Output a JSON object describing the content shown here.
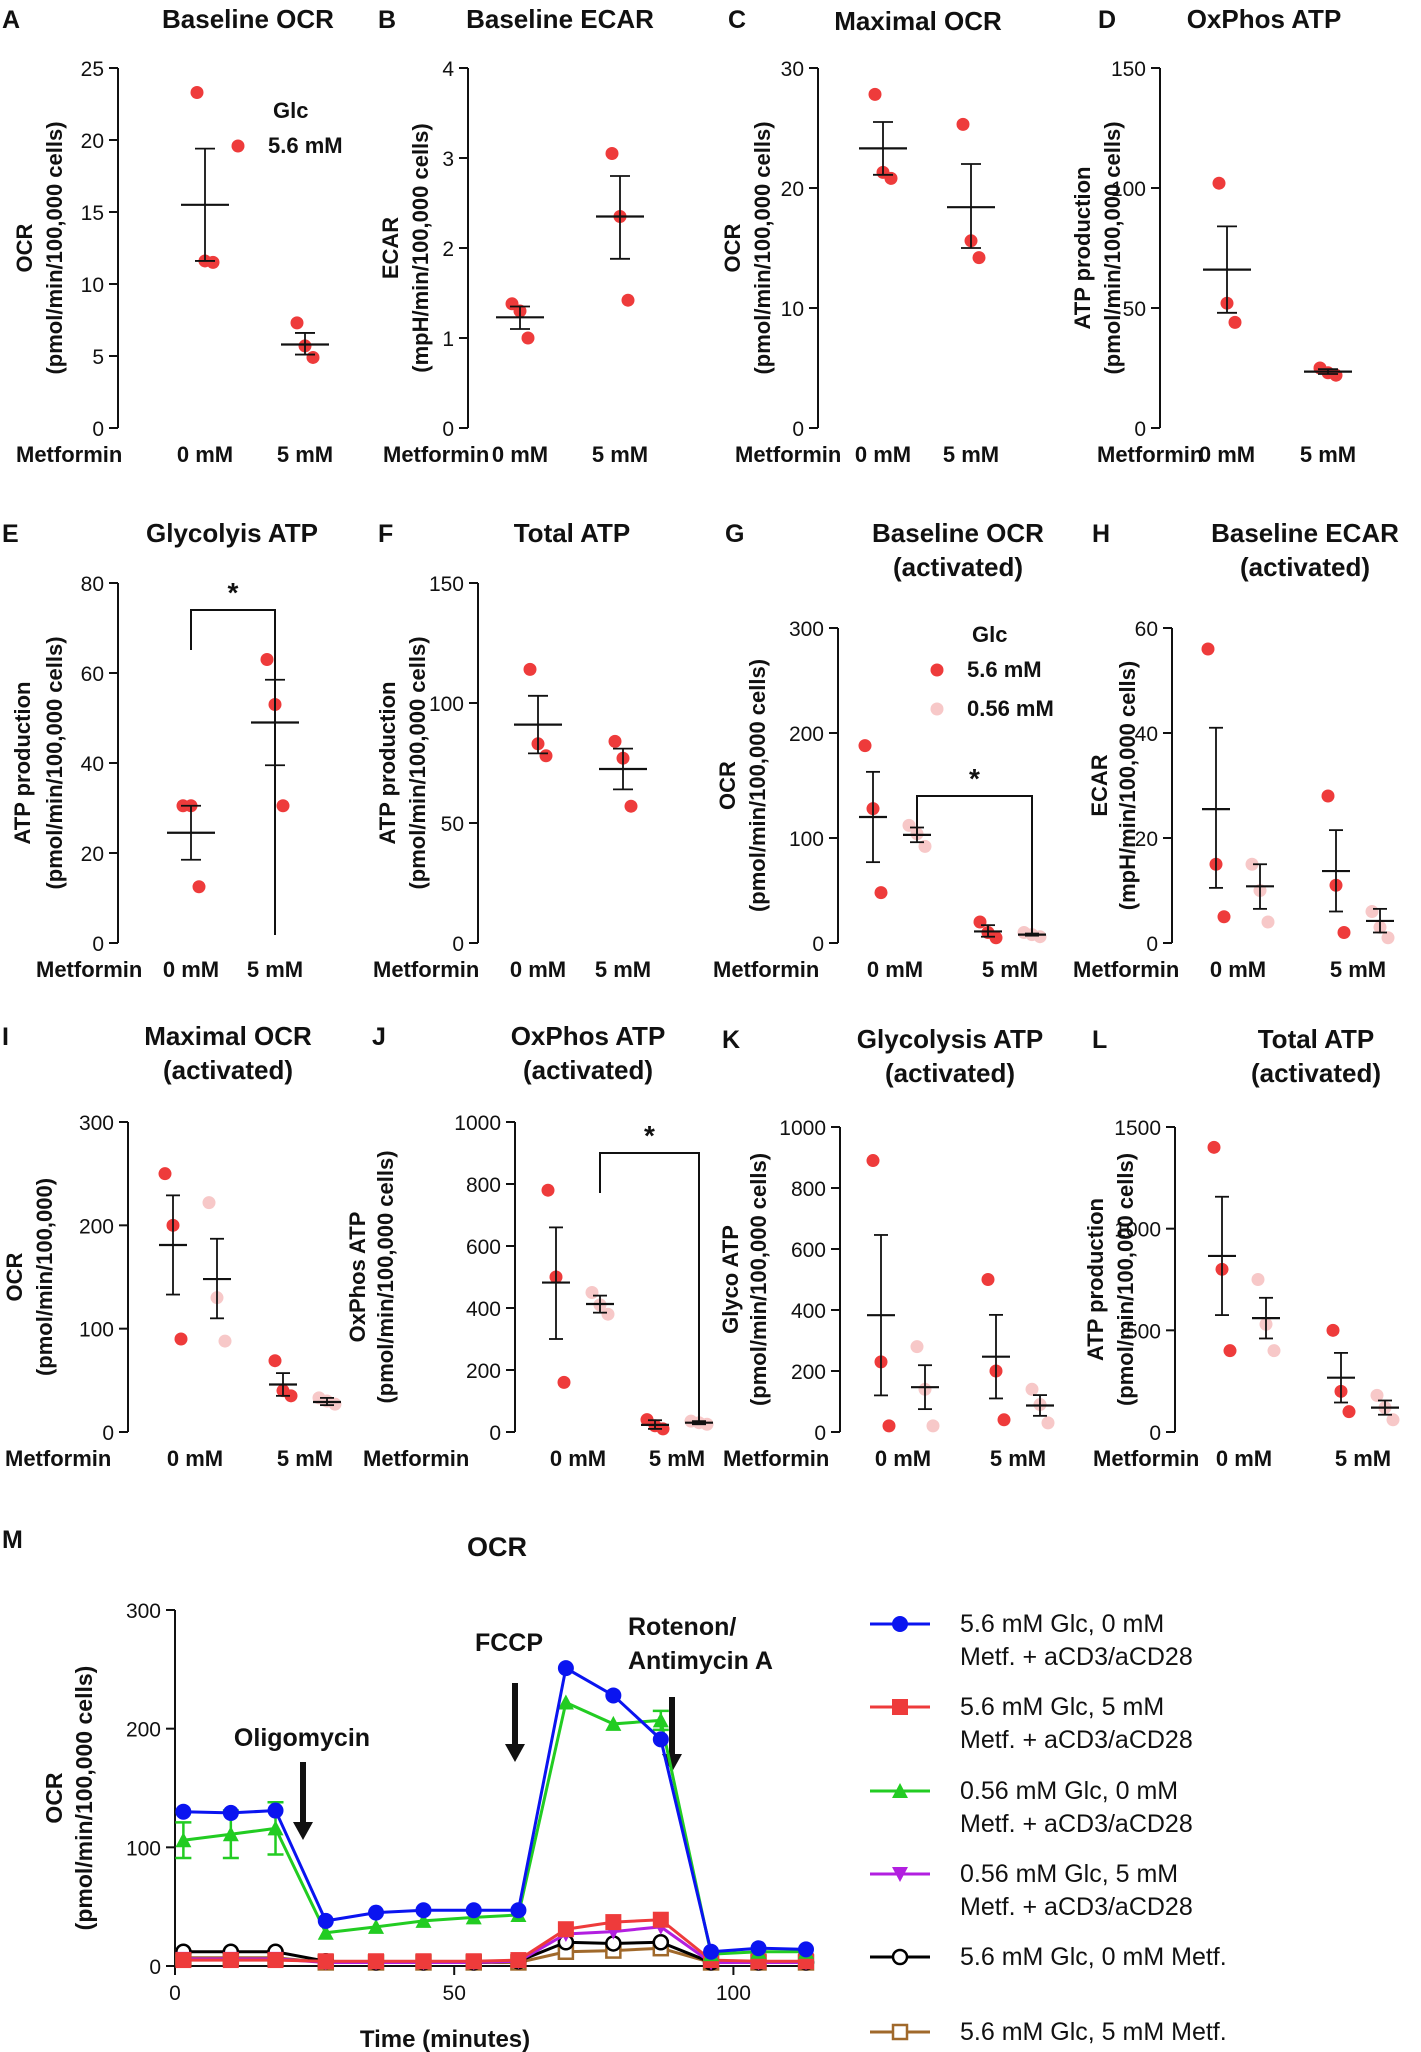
{
  "colors": {
    "red": "#ee3b3b",
    "pink": "#f7c8c8",
    "axis": "#111111",
    "blue": "#0a14f0",
    "green": "#22cc22",
    "purple": "#b21fe0",
    "black": "#000000",
    "brown": "#a0692b"
  },
  "chart_data": [
    {
      "panel": "A",
      "type": "scatter",
      "title": "Baseline OCR",
      "ylabel": [
        "OCR",
        "(pmol/min/100,000 cells)"
      ],
      "xlabel": "Metformin",
      "categories": [
        "0 mM",
        "5 mM"
      ],
      "ylim": [
        0,
        25
      ],
      "yticks": [
        0,
        5,
        10,
        15,
        20,
        25
      ],
      "legend": {
        "title": "Glc",
        "items": [
          {
            "label": "5.6 mM",
            "color": "red"
          }
        ]
      },
      "groups": [
        {
          "category": "0 mM",
          "color": "red",
          "points": [
            23.3,
            11.6,
            11.5
          ],
          "mean": 15.5,
          "sem": [
            11.6,
            19.4
          ]
        },
        {
          "category": "5 mM",
          "color": "red",
          "points": [
            7.3,
            5.7,
            4.9
          ],
          "mean": 5.8,
          "sem": [
            5.1,
            6.6
          ]
        }
      ]
    },
    {
      "panel": "B",
      "type": "scatter",
      "title": "Baseline ECAR",
      "ylabel": [
        "ECAR",
        "(mpH/min/100,000 cells)"
      ],
      "xlabel": "Metformin",
      "categories": [
        "0 mM",
        "5 mM"
      ],
      "ylim": [
        0,
        4
      ],
      "yticks": [
        0,
        1,
        2,
        3,
        4
      ],
      "groups": [
        {
          "category": "0 mM",
          "color": "red",
          "points": [
            1.38,
            1.3,
            1.0
          ],
          "mean": 1.23,
          "sem": [
            1.1,
            1.35
          ]
        },
        {
          "category": "5 mM",
          "color": "red",
          "points": [
            3.05,
            2.35,
            1.42
          ],
          "mean": 2.35,
          "sem": [
            1.88,
            2.8
          ]
        }
      ]
    },
    {
      "panel": "C",
      "type": "scatter",
      "title": "Maximal OCR",
      "ylabel": [
        "OCR",
        "(pmol/min/100,000 cells)"
      ],
      "xlabel": "Metformin",
      "categories": [
        "0 mM",
        "5 mM"
      ],
      "ylim": [
        0,
        30
      ],
      "yticks": [
        0,
        10,
        20,
        30
      ],
      "groups": [
        {
          "category": "0 mM",
          "color": "red",
          "points": [
            27.8,
            21.3,
            20.8
          ],
          "mean": 23.3,
          "sem": [
            21.1,
            25.5
          ]
        },
        {
          "category": "5 mM",
          "color": "red",
          "points": [
            25.3,
            15.6,
            14.2
          ],
          "mean": 18.4,
          "sem": [
            15.0,
            22.0
          ]
        }
      ]
    },
    {
      "panel": "D",
      "type": "scatter",
      "title": "OxPhos ATP",
      "ylabel": [
        "ATP production",
        "(pmol/min/100,000 cells)"
      ],
      "xlabel": "Metformin",
      "categories": [
        "0 mM",
        "5 mM"
      ],
      "ylim": [
        0,
        150
      ],
      "yticks": [
        0,
        50,
        100,
        150
      ],
      "groups": [
        {
          "category": "0 mM",
          "color": "red",
          "points": [
            102,
            52,
            44
          ],
          "mean": 66,
          "sem": [
            48,
            84
          ]
        },
        {
          "category": "5 mM",
          "color": "red",
          "points": [
            25,
            23,
            22
          ],
          "mean": 23.5,
          "sem": [
            22.5,
            24.5
          ]
        }
      ]
    },
    {
      "panel": "E",
      "type": "scatter",
      "title": "Glycolyis ATP",
      "ylabel": [
        "ATP production",
        "(pmol/min/100,000 cells)"
      ],
      "xlabel": "Metformin",
      "categories": [
        "0 mM",
        "5 mM"
      ],
      "ylim": [
        0,
        80
      ],
      "yticks": [
        0,
        20,
        40,
        60,
        80
      ],
      "significance": [
        {
          "from": 0,
          "to": 1,
          "label": "*",
          "level": 74
        }
      ],
      "groups": [
        {
          "category": "0 mM",
          "color": "red",
          "points": [
            30.5,
            30.5,
            12.5
          ],
          "mean": 24.5,
          "sem": [
            18.5,
            30.5
          ]
        },
        {
          "category": "5 mM",
          "color": "red",
          "points": [
            63,
            53,
            30.5
          ],
          "mean": 49,
          "sem": [
            39.5,
            58.5
          ]
        }
      ]
    },
    {
      "panel": "F",
      "type": "scatter",
      "title": "Total ATP",
      "ylabel": [
        "ATP production",
        "(pmol/min/100,000 cells)"
      ],
      "xlabel": "Metformin",
      "categories": [
        "0 mM",
        "5 mM"
      ],
      "ylim": [
        0,
        150
      ],
      "yticks": [
        0,
        50,
        100,
        150
      ],
      "groups": [
        {
          "category": "0 mM",
          "color": "red",
          "points": [
            114,
            83,
            78
          ],
          "mean": 91,
          "sem": [
            79,
            103
          ]
        },
        {
          "category": "5 mM",
          "color": "red",
          "points": [
            84,
            77,
            57
          ],
          "mean": 72.5,
          "sem": [
            64,
            81
          ]
        }
      ]
    },
    {
      "panel": "G",
      "type": "scatter",
      "title": "Baseline OCR",
      "subtitle": "(activated)",
      "ylabel": [
        "OCR",
        "(pmol/min/100,000 cells)"
      ],
      "xlabel": "Metformin",
      "categories": [
        "0 mM",
        "5 mM"
      ],
      "ylim": [
        0,
        300
      ],
      "yticks": [
        0,
        100,
        200,
        300
      ],
      "legend": {
        "title": "Glc",
        "items": [
          {
            "label": "5.6 mM",
            "color": "red"
          },
          {
            "label": "0.56 mM",
            "color": "pink"
          }
        ]
      },
      "significance": [
        {
          "from": 1,
          "to": 3,
          "label": "*",
          "level": 140
        }
      ],
      "groups": [
        {
          "category": "0 mM",
          "color": "red",
          "points": [
            188,
            128,
            48
          ],
          "mean": 120,
          "sem": [
            77,
            163
          ]
        },
        {
          "category": "0 mM",
          "color": "pink",
          "points": [
            112,
            104,
            92
          ],
          "mean": 103,
          "sem": [
            96,
            110
          ]
        },
        {
          "category": "5 mM",
          "color": "red",
          "points": [
            20,
            10,
            5
          ],
          "mean": 11,
          "sem": [
            6,
            17
          ]
        },
        {
          "category": "5 mM",
          "color": "pink",
          "points": [
            10,
            8,
            6
          ],
          "mean": 8,
          "sem": [
            7,
            9
          ]
        }
      ]
    },
    {
      "panel": "H",
      "type": "scatter",
      "title": "Baseline ECAR",
      "subtitle": "(activated)",
      "ylabel": [
        "ECAR",
        "(mpH/min/100,000 cells)"
      ],
      "xlabel": "Metformin",
      "categories": [
        "0 mM",
        "5 mM"
      ],
      "ylim": [
        0,
        60
      ],
      "yticks": [
        0,
        20,
        40,
        60
      ],
      "groups": [
        {
          "category": "0 mM",
          "color": "red",
          "points": [
            56,
            15,
            5
          ],
          "mean": 25.5,
          "sem": [
            10.5,
            41
          ]
        },
        {
          "category": "0 mM",
          "color": "pink",
          "points": [
            15,
            10,
            4
          ],
          "mean": 10.8,
          "sem": [
            6.5,
            15
          ]
        },
        {
          "category": "5 mM",
          "color": "red",
          "points": [
            28,
            11,
            2
          ],
          "mean": 13.7,
          "sem": [
            6,
            21.5
          ]
        },
        {
          "category": "5 mM",
          "color": "pink",
          "points": [
            6,
            3,
            1
          ],
          "mean": 4.2,
          "sem": [
            2,
            6.5
          ]
        }
      ]
    },
    {
      "panel": "I",
      "type": "scatter",
      "title": "Maximal OCR",
      "subtitle": "(activated)",
      "ylabel": [
        "OCR",
        "(pmol/min/100,000)"
      ],
      "xlabel": "Metformin",
      "categories": [
        "0 mM",
        "5 mM"
      ],
      "ylim": [
        0,
        300
      ],
      "yticks": [
        0,
        100,
        200,
        300
      ],
      "groups": [
        {
          "category": "0 mM",
          "color": "red",
          "points": [
            250,
            200,
            90
          ],
          "mean": 181,
          "sem": [
            133,
            229
          ]
        },
        {
          "category": "0 mM",
          "color": "pink",
          "points": [
            222,
            130,
            88
          ],
          "mean": 148,
          "sem": [
            110,
            187
          ]
        },
        {
          "category": "5 mM",
          "color": "red",
          "points": [
            69,
            40,
            35
          ],
          "mean": 46,
          "sem": [
            35,
            57
          ]
        },
        {
          "category": "5 mM",
          "color": "pink",
          "points": [
            33,
            30,
            27
          ],
          "mean": 29,
          "sem": [
            26,
            33
          ]
        }
      ]
    },
    {
      "panel": "J",
      "type": "scatter",
      "title": "OxPhos ATP",
      "subtitle": "(activated)",
      "ylabel": [
        "OxPhos ATP",
        "(pmol/min/100,000 cells)"
      ],
      "xlabel": "Metformin",
      "categories": [
        "0 mM",
        "5 mM"
      ],
      "ylim": [
        0,
        1000
      ],
      "yticks": [
        0,
        200,
        400,
        600,
        800,
        1000
      ],
      "significance": [
        {
          "from": 1,
          "to": 3,
          "label": "*",
          "level": 900
        }
      ],
      "groups": [
        {
          "category": "0 mM",
          "color": "red",
          "points": [
            780,
            500,
            160
          ],
          "mean": 482,
          "sem": [
            300,
            660
          ]
        },
        {
          "category": "0 mM",
          "color": "pink",
          "points": [
            450,
            410,
            380
          ],
          "mean": 413,
          "sem": [
            385,
            440
          ]
        },
        {
          "category": "5 mM",
          "color": "red",
          "points": [
            40,
            20,
            10
          ],
          "mean": 23,
          "sem": [
            10,
            38
          ]
        },
        {
          "category": "5 mM",
          "color": "pink",
          "points": [
            35,
            30,
            25
          ],
          "mean": 30,
          "sem": [
            25,
            35
          ]
        }
      ]
    },
    {
      "panel": "K",
      "type": "scatter",
      "title": "Glycolysis ATP",
      "subtitle": "(activated)",
      "ylabel": [
        "Glyco ATP",
        "(pmol/min/100,000 cells)"
      ],
      "xlabel": "Metformin",
      "categories": [
        "0 mM",
        "5 mM"
      ],
      "ylim": [
        0,
        1000
      ],
      "yticks": [
        0,
        200,
        400,
        600,
        800,
        1000
      ],
      "groups": [
        {
          "category": "0 mM",
          "color": "red",
          "points": [
            890,
            230,
            20
          ],
          "mean": 383,
          "sem": [
            120,
            646
          ]
        },
        {
          "category": "0 mM",
          "color": "pink",
          "points": [
            280,
            140,
            20
          ],
          "mean": 147,
          "sem": [
            75,
            219
          ]
        },
        {
          "category": "5 mM",
          "color": "red",
          "points": [
            500,
            200,
            40
          ],
          "mean": 247,
          "sem": [
            110,
            384
          ]
        },
        {
          "category": "5 mM",
          "color": "pink",
          "points": [
            140,
            90,
            30
          ],
          "mean": 87,
          "sem": [
            53,
            121
          ]
        }
      ]
    },
    {
      "panel": "L",
      "type": "scatter",
      "title": "Total ATP",
      "subtitle": "(activated)",
      "ylabel": [
        "ATP production",
        "(pmol/min/100,000 cells)"
      ],
      "xlabel": "Metformin",
      "categories": [
        "0 mM",
        "5 mM"
      ],
      "ylim": [
        0,
        1500
      ],
      "yticks": [
        0,
        500,
        1000,
        1500
      ],
      "groups": [
        {
          "category": "0 mM",
          "color": "red",
          "points": [
            1400,
            800,
            400
          ],
          "mean": 866,
          "sem": [
            575,
            1157
          ]
        },
        {
          "category": "0 mM",
          "color": "pink",
          "points": [
            750,
            530,
            400
          ],
          "mean": 560,
          "sem": [
            460,
            660
          ]
        },
        {
          "category": "5 mM",
          "color": "red",
          "points": [
            500,
            200,
            100
          ],
          "mean": 267,
          "sem": [
            145,
            389
          ]
        },
        {
          "category": "5 mM",
          "color": "pink",
          "points": [
            180,
            120,
            60
          ],
          "mean": 120,
          "sem": [
            85,
            155
          ]
        }
      ]
    },
    {
      "panel": "M",
      "type": "line",
      "title": "OCR",
      "ylabel": [
        "OCR",
        "(pmol/min/100,000 cells)"
      ],
      "xlabel": "Time (minutes)",
      "xlim": [
        0,
        113
      ],
      "xticks": [
        0,
        50,
        100
      ],
      "ylim": [
        0,
        300
      ],
      "yticks": [
        0,
        100,
        200,
        300
      ],
      "x": [
        1.5,
        10,
        18,
        27,
        36,
        44.5,
        53.5,
        61.5,
        70,
        78.5,
        87,
        96,
        104.5,
        113
      ],
      "annotations": [
        {
          "label": "Oligomycin",
          "x": 24
        },
        {
          "label": "FCCP",
          "x": 63
        },
        {
          "label": "Rotenon/",
          "label2": "Antimycin A",
          "x": 93
        }
      ],
      "series": [
        {
          "name": "5.6 mM Glc, 0 mM",
          "name2": "Metf. + aCD3/aCD28",
          "color": "blue",
          "marker": "circle-filled",
          "values": [
            130,
            129,
            131,
            38,
            45,
            47,
            47,
            47,
            251,
            228,
            191,
            12,
            15,
            14
          ]
        },
        {
          "name": "5.6 mM Glc, 5 mM",
          "name2": "Metf. + aCD3/aCD28",
          "color": "red",
          "marker": "square-filled",
          "values": [
            5,
            5,
            5,
            4,
            4,
            4,
            4,
            5,
            31,
            37,
            39,
            5,
            4,
            4
          ]
        },
        {
          "name": "0.56 mM Glc, 0 mM",
          "name2": "Metf. + aCD3/aCD28",
          "color": "green",
          "marker": "triangle-filled",
          "values": [
            106,
            111,
            116,
            28,
            33,
            38,
            41,
            43,
            222,
            204,
            207,
            10,
            12,
            12
          ],
          "errors": [
            15,
            20,
            22,
            0,
            0,
            0,
            0,
            0,
            0,
            0,
            8,
            0,
            0,
            0
          ]
        },
        {
          "name": "0.56 mM Glc, 5 mM",
          "name2": "Metf. + aCD3/aCD28",
          "color": "purple",
          "marker": "triangle-down-filled",
          "values": [
            6,
            6,
            6,
            3,
            3,
            3,
            3,
            4,
            27,
            29,
            33,
            3,
            3,
            3
          ]
        },
        {
          "name": "5.6 mM Glc, 0 mM Metf.",
          "name2": "",
          "color": "black",
          "marker": "circle-open",
          "values": [
            12,
            12,
            12,
            4,
            3,
            3,
            3,
            4,
            20,
            19,
            20,
            3,
            3,
            3
          ]
        },
        {
          "name": "5.6 mM Glc, 5 mM Metf.",
          "name2": "",
          "color": "brown",
          "marker": "square-open",
          "values": [
            7,
            7,
            7,
            3,
            3,
            3,
            3,
            3,
            12,
            13,
            15,
            3,
            3,
            3
          ]
        }
      ]
    }
  ]
}
